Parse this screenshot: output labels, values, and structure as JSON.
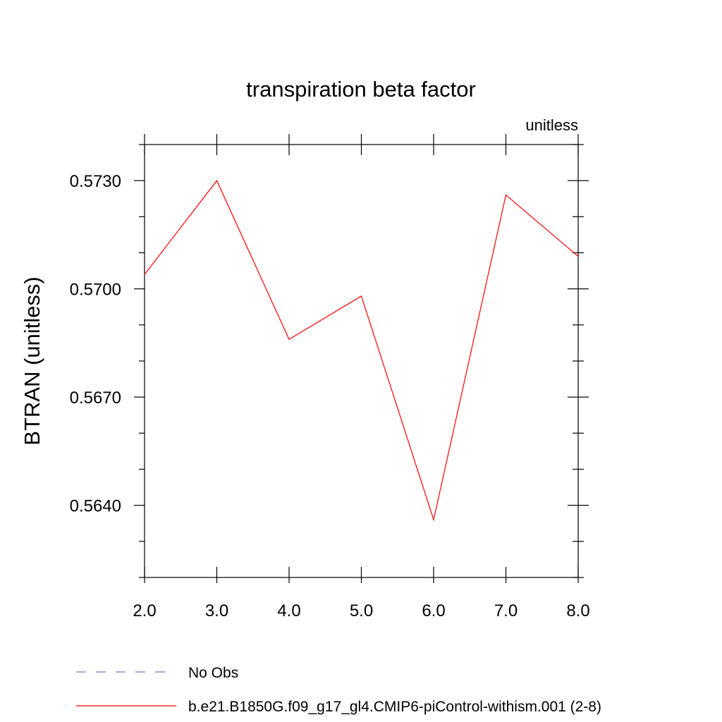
{
  "chart_data": {
    "type": "line",
    "title": "transpiration beta factor",
    "units": "unitless",
    "ylabel": "BTRAN  (unitless)",
    "xlabel": "",
    "xlim": [
      2.0,
      8.0
    ],
    "ylim": [
      0.562,
      0.574
    ],
    "xticks": [
      "2.0",
      "3.0",
      "4.0",
      "5.0",
      "6.0",
      "7.0",
      "8.0"
    ],
    "xtick_values": [
      2,
      3,
      4,
      5,
      6,
      7,
      8
    ],
    "yticks": [
      "0.5640",
      "0.5670",
      "0.5700",
      "0.5730"
    ],
    "ytick_values": [
      0.564,
      0.567,
      0.57,
      0.573
    ],
    "y_minor_step": 0.001,
    "grid": false,
    "legend_position": "bottom",
    "series": [
      {
        "name": "No Obs",
        "style": "dashed",
        "color": "#7a70b8",
        "x": [],
        "values": []
      },
      {
        "name": "b.e21.B1850G.f09_g17_gl4.CMIP6-piControl-withism.001 (2-8)",
        "style": "solid",
        "color": "#ff0000",
        "x": [
          2,
          3,
          4,
          5,
          6,
          7,
          8
        ],
        "values": [
          0.5704,
          0.573,
          0.5686,
          0.5698,
          0.5636,
          0.5726,
          0.5709
        ]
      }
    ]
  }
}
